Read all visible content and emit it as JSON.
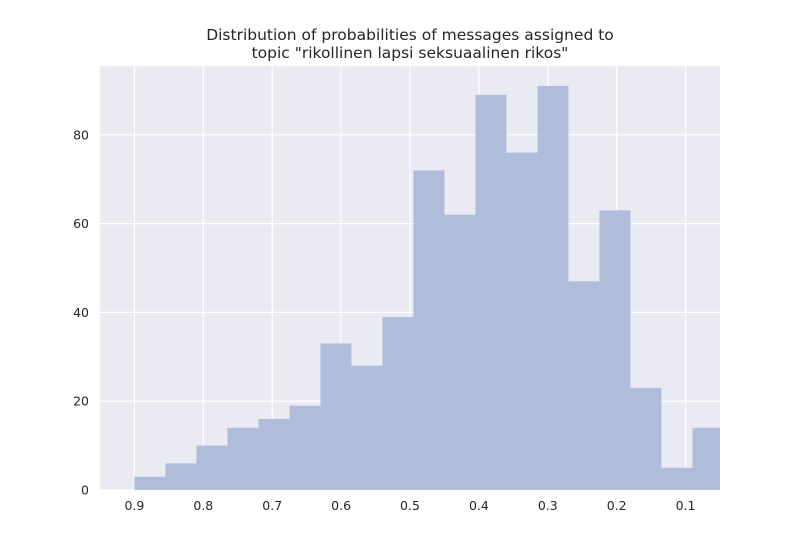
{
  "chart_data": {
    "type": "bar",
    "title": [
      "Distribution of probabilities of messages assigned to",
      "topic \"rikollinen lapsi seksuaalinen rikos\""
    ],
    "xlabel": "",
    "ylabel": "",
    "x_axis_reversed": true,
    "xlim": [
      0.95,
      0.05
    ],
    "ylim": [
      0,
      95.5
    ],
    "bin_edges": [
      0.9,
      0.855,
      0.81,
      0.765,
      0.72,
      0.675,
      0.63,
      0.585,
      0.54,
      0.495,
      0.45,
      0.405,
      0.36,
      0.315,
      0.27,
      0.225,
      0.18,
      0.135,
      0.09,
      0.045
    ],
    "values": [
      3,
      6,
      10,
      14,
      16,
      19,
      33,
      28,
      39,
      72,
      62,
      89,
      76,
      91,
      47,
      63,
      23,
      5,
      14
    ],
    "x_ticks": [
      0.9,
      0.8,
      0.7,
      0.6,
      0.5,
      0.4,
      0.3,
      0.2,
      0.1
    ],
    "x_tick_labels": [
      "0.9",
      "0.8",
      "0.7",
      "0.6",
      "0.5",
      "0.4",
      "0.3",
      "0.2",
      "0.1"
    ],
    "y_ticks": [
      0,
      20,
      40,
      60,
      80
    ],
    "y_tick_labels": [
      "0",
      "20",
      "40",
      "60",
      "80"
    ],
    "grid": true,
    "colors": {
      "bar": "#aab8d8",
      "background": "#eaeaf2",
      "grid": "#ffffff"
    }
  }
}
